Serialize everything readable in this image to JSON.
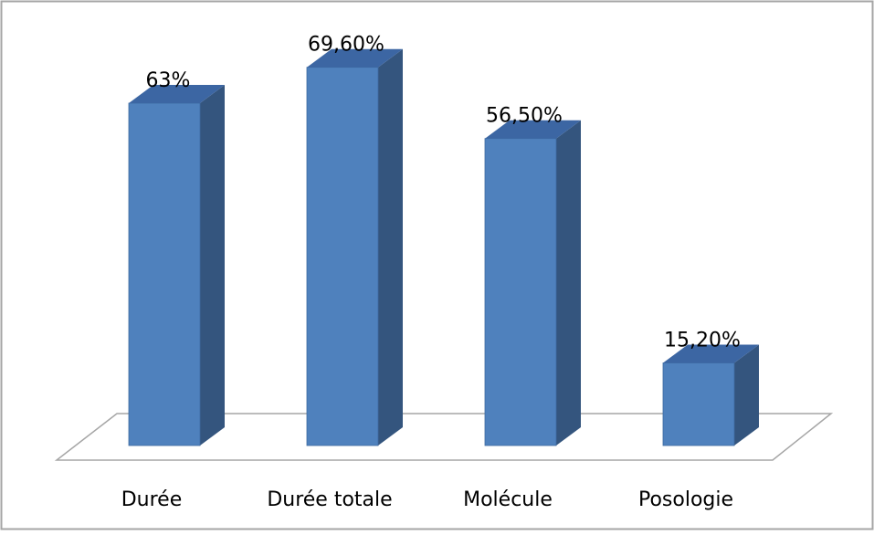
{
  "chart_data": {
    "type": "bar",
    "style": "3d-columns",
    "categories": [
      "Durée",
      "Durée totale",
      "Molécule",
      "Posologie"
    ],
    "values": [
      63,
      69.6,
      56.5,
      15.2
    ],
    "data_labels": [
      "63%",
      "69,60%",
      "56,50%",
      "15,20%"
    ],
    "unit": "%",
    "title": "",
    "xlabel": "",
    "ylabel": "",
    "ylim": [
      0,
      80
    ],
    "grid": false,
    "legend": "none",
    "colors": {
      "bar_front": "#4F81BD",
      "bar_side": "#34557E",
      "bar_top": "#3C66A3",
      "floor_stroke": "#A6A6A6",
      "frame_stroke": "#A6A6A6"
    }
  }
}
